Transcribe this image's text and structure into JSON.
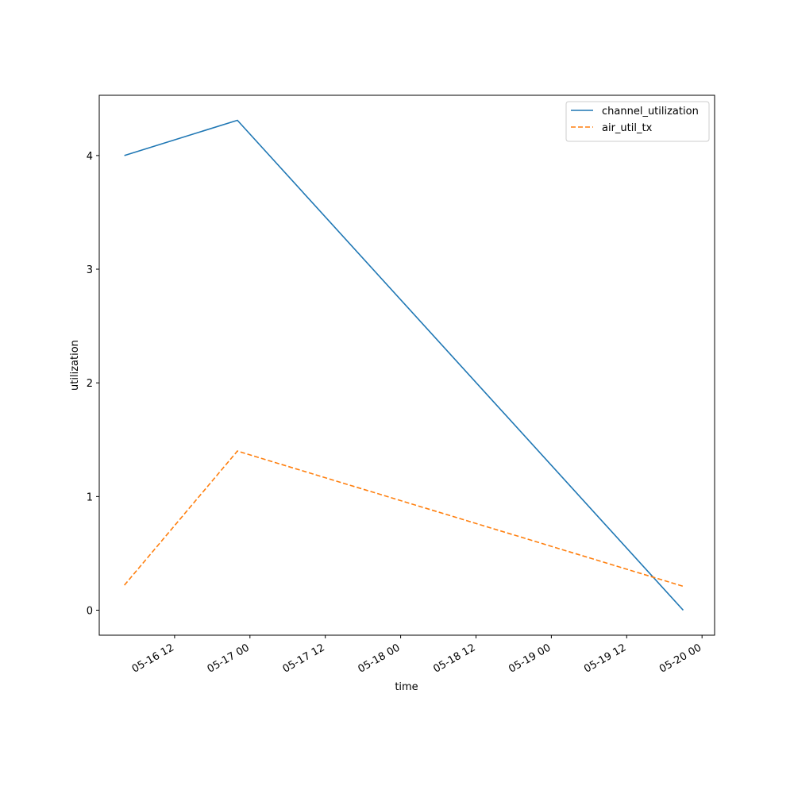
{
  "chart_data": {
    "type": "line",
    "xlabel": "time",
    "ylabel": "utilization",
    "x": [
      "05-16 04",
      "05-16 22",
      "05-19 21"
    ],
    "series": [
      {
        "name": "channel_utilization",
        "color": "#1f77b4",
        "linestyle": "solid",
        "values": [
          4.0,
          4.31,
          0.0
        ]
      },
      {
        "name": "air_util_tx",
        "color": "#ff7f0e",
        "linestyle": "dashed",
        "values": [
          0.22,
          1.4,
          0.21
        ]
      }
    ],
    "xlim": [
      "05-16 00",
      "05-20 02"
    ],
    "xticks": [
      "05-16 12",
      "05-17 00",
      "05-17 12",
      "05-18 00",
      "05-18 12",
      "05-19 00",
      "05-19 12",
      "05-20 00"
    ],
    "ylim": [
      -0.22,
      4.53
    ],
    "yticks": [
      0,
      1,
      2,
      3,
      4
    ],
    "legend": "upper right"
  }
}
